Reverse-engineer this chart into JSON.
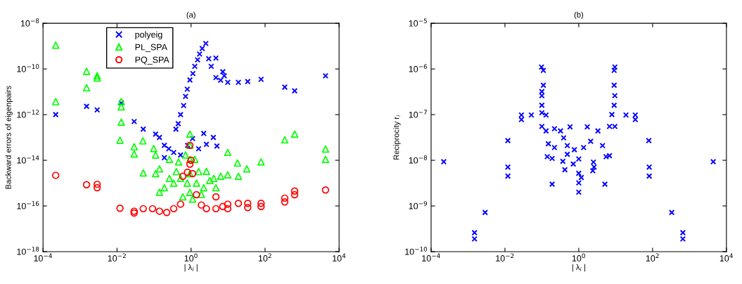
{
  "chart_data": [
    {
      "type": "scatter",
      "title": "(a)",
      "xlabel": "| λ$_{i}$ |",
      "ylabel": "Backward errors of eigenpairs",
      "log": "xy",
      "grid": false,
      "legend": "top left",
      "xlim": [
        0.0001,
        10000.0
      ],
      "ylim": [
        1e-18,
        1e-08
      ],
      "xticks": [
        {
          "value": 0.0001,
          "label": "10$^{−4}$"
        },
        {
          "value": 0.01,
          "label": "10$^{−2}$"
        },
        {
          "value": 1,
          "label": "10$^{0}$"
        },
        {
          "value": 100,
          "label": "10$^{2}$"
        },
        {
          "value": 10000.0,
          "label": "10$^{4}$"
        }
      ],
      "yticks": [
        {
          "value": 1e-18,
          "label": "10$^{−18}$"
        },
        {
          "value": 1e-16,
          "label": "10$^{−16}$"
        },
        {
          "value": 1e-14,
          "label": "10$^{−14}$"
        },
        {
          "value": 1e-12,
          "label": "10$^{−12}$"
        },
        {
          "value": 1e-10,
          "label": "10$^{−10}$"
        },
        {
          "value": 1e-08,
          "label": "10$^{−8}$"
        }
      ],
      "series": [
        {
          "name": "polyeig",
          "color": "#0000ff",
          "marker": "cross",
          "x": [
            0.00022,
            0.0015,
            0.0029,
            0.013,
            0.029,
            0.051,
            0.11,
            0.19,
            0.34,
            0.52,
            0.19,
            0.39,
            0.52,
            0.71,
            0.93,
            1.26,
            1.7,
            2.5,
            3.0,
            4.7,
            4.7,
            7.2,
            9.8,
            19,
            34,
            78,
            340,
            630,
            4300,
            1.1,
            2.2,
            2.6,
            5.0,
            0.81,
            0.45,
            0.63,
            0.79,
            1.12,
            1.5,
            2.0,
            3.5,
            6.3,
            7.9,
            0.25,
            0.14,
            1.6,
            4.0
          ],
          "values": [
            1e-12,
            2.3e-12,
            1.6e-12,
            3.2e-12,
            5e-13,
            2.3e-13,
            1.4e-13,
            4.5e-14,
            2.2e-14,
            1.7e-14,
            1.3e-14,
            2.3e-13,
            1e-12,
            6.3e-12,
            3.3e-11,
            1.3e-10,
            4.5e-10,
            1.3e-09,
            2.8e-10,
            3e-10,
            4.2e-11,
            7.6e-11,
            2.6e-11,
            2.6e-11,
            2.8e-11,
            3.5e-11,
            1.6e-11,
            1.1e-11,
            5e-11,
            8.9e-14,
            1.5e-13,
            5e-14,
            4.2e-14,
            4.5e-14,
            4e-13,
            2.5e-12,
            1.3e-11,
            6.3e-11,
            2.5e-10,
            7.9e-10,
            1.3e-10,
            3.2e-11,
            5e-11,
            3.2e-14,
            1e-13,
            3.2e-14,
            1e-13
          ]
        },
        {
          "name": "PL_SPA",
          "color": "#00ff00",
          "marker": "triangle",
          "x": [
            0.00022,
            0.00022,
            0.0015,
            0.0015,
            0.0029,
            0.0029,
            0.013,
            0.013,
            0.013,
            0.012,
            0.029,
            0.029,
            0.05,
            0.051,
            0.098,
            0.11,
            0.26,
            0.14,
            0.26,
            0.52,
            0.93,
            0.93,
            0.93,
            0.93,
            0.93,
            1.4,
            2.2,
            4.1,
            6.3,
            9.8,
            9.8,
            18,
            19,
            32,
            78,
            340,
            630,
            4300,
            4300,
            0.34,
            0.19,
            0.14,
            0.6,
            1.1,
            1.9,
            0.46,
            0.71,
            1.26,
            0.11,
            2.6,
            4.7,
            0.4,
            1.6,
            0.79,
            3.2
          ],
          "values": [
            1.1e-09,
            3.7e-12,
            7.9e-11,
            1.5e-11,
            5e-11,
            4e-11,
            3.7e-12,
            2.2e-12,
            4.7e-13,
            7.6e-14,
            3.9e-14,
            1.9e-14,
            7.1e-14,
            2.8e-15,
            3.3e-14,
            1.7e-14,
            1.1e-14,
            4.2e-15,
            1.6e-15,
            1.6e-15,
            1.4e-13,
            4.5e-14,
            1.1e-14,
            2.6e-15,
            3.9e-16,
            1e-15,
            6.3e-16,
            1.6e-15,
            2e-15,
            2.3e-15,
            2.2e-14,
            7.6e-15,
            2e-15,
            4.2e-15,
            8.5e-15,
            7.9e-14,
            1.4e-13,
            3.1e-14,
            1.1e-14,
            1e-15,
            6.3e-16,
            4e-16,
            2.5e-16,
            2e-16,
            3.2e-16,
            8.5e-15,
            1.7e-14,
            1.1e-14,
            2.6e-15,
            3.3e-15,
            6.3e-16,
            3.2e-15,
            3.2e-15,
            1e-15,
            1.3e-15
          ]
        },
        {
          "name": "PQ_SPA",
          "color": "#ff0000",
          "marker": "circle",
          "x": [
            0.00022,
            0.0015,
            0.0029,
            0.0029,
            0.012,
            0.029,
            0.029,
            0.051,
            0.091,
            0.14,
            0.22,
            0.34,
            0.52,
            0.93,
            0.93,
            1.1,
            0.6,
            1.4,
            1.9,
            2.6,
            4.7,
            4.7,
            7.2,
            9.8,
            9.8,
            19,
            34,
            34,
            78,
            78,
            340,
            340,
            630,
            630,
            4300,
            0.8,
            1.0
          ],
          "values": [
            2.2e-15,
            8.5e-16,
            8.9e-16,
            6.3e-16,
            7.9e-17,
            5.9e-17,
            4.9e-17,
            7.6e-17,
            7.6e-17,
            5.9e-17,
            5.2e-17,
            7.6e-17,
            1.2e-16,
            4.5e-14,
            6.8e-15,
            2.6e-15,
            2e-15,
            3.1e-16,
            1.1e-16,
            7.6e-17,
            2.5e-16,
            7.6e-17,
            9.5e-17,
            1.2e-16,
            7.6e-17,
            1.3e-16,
            1.3e-16,
            8.5e-17,
            1.3e-16,
            9.5e-17,
            2.2e-16,
            1.5e-16,
            4.5e-16,
            3.1e-16,
            5e-16,
            3e-15,
            1e-14
          ]
        }
      ]
    },
    {
      "type": "scatter",
      "title": "(b)",
      "xlabel": "| λ$_{i}$ |",
      "ylabel": "Reciprocity r$_{i}$",
      "log": "xy",
      "grid": false,
      "xlim": [
        0.0001,
        10000.0
      ],
      "ylim": [
        1e-10,
        1e-05
      ],
      "xticks": [
        {
          "value": 0.0001,
          "label": "10$^{−4}$"
        },
        {
          "value": 0.01,
          "label": "10$^{−2}$"
        },
        {
          "value": 1,
          "label": "10$^{0}$"
        },
        {
          "value": 100,
          "label": "10$^{2}$"
        },
        {
          "value": 10000.0,
          "label": "10$^{4}$"
        }
      ],
      "yticks": [
        {
          "value": 1e-10,
          "label": "10$^{−10}$"
        },
        {
          "value": 1e-09,
          "label": "10$^{−9}$"
        },
        {
          "value": 1e-08,
          "label": "10$^{−8}$"
        },
        {
          "value": 1e-07,
          "label": "10$^{−7}$"
        },
        {
          "value": 1e-06,
          "label": "10$^{−6}$"
        },
        {
          "value": 1e-05,
          "label": "10$^{−5}$"
        }
      ],
      "series": [
        {
          "color": "#0000ff",
          "marker": "cross",
          "x": [
            0.00022,
            0.0015,
            0.0015,
            0.0029,
            0.012,
            0.012,
            0.012,
            0.028,
            0.028,
            0.052,
            0.098,
            0.11,
            0.11,
            0.1,
            0.1,
            0.1,
            0.1,
            0.13,
            0.1,
            0.13,
            0.14,
            0.19,
            0.19,
            0.15,
            0.22,
            0.22,
            0.32,
            0.39,
            0.49,
            0.58,
            0.37,
            0.42,
            0.49,
            0.76,
            0.71,
            1.0,
            1.0,
            1.0,
            1.0,
            1.17,
            1.35,
            1.7,
            2.1,
            2.5,
            2.6,
            2.4,
            3.3,
            4.4,
            5.1,
            5.5,
            6.8,
            6.8,
            7.9,
            9.1,
            9.1,
            9.1,
            9.5,
            9.5,
            9.5,
            19,
            34,
            34,
            79,
            81,
            81,
            330,
            660,
            660,
            4400
          ],
          "values": [
            9.3e-09,
            2.6e-10,
            1.9e-10,
            7.2e-10,
            2.7e-08,
            7.1e-09,
            4.5e-09,
            9.8e-08,
            7.8e-08,
            9.8e-08,
            1.1e-06,
            9.3e-07,
            4.4e-07,
            3.2e-07,
            2.6e-07,
            1.6e-07,
            1.1e-07,
            9.8e-08,
            5.5e-08,
            4.4e-08,
            1.2e-08,
            1.1e-08,
            3e-09,
            2.3e-08,
            4.9e-08,
            1.9e-08,
            4.4e-08,
            3.1e-08,
            2.1e-08,
            5.4e-08,
            9.5e-09,
            6.2e-09,
            1.35e-08,
            1.7e-08,
            8.3e-09,
            1.07e-08,
            5.2e-09,
            3.2e-09,
            2e-09,
            4.2e-09,
            1.9e-08,
            5.4e-08,
            2.6e-08,
            9.1e-09,
            7.1e-09,
            5.9e-09,
            4.4e-08,
            2.1e-08,
            3e-09,
            1.2e-08,
            1.26e-08,
            5.5e-08,
            1e-07,
            1.6e-07,
            4.4e-07,
            9.3e-07,
            1.1e-06,
            5.5e-08,
            2.6e-07,
            9.8e-08,
            9.8e-08,
            7.8e-08,
            2.7e-08,
            7.1e-09,
            4.5e-09,
            7.2e-10,
            2.6e-10,
            1.9e-10,
            9.3e-09
          ]
        }
      ]
    }
  ]
}
